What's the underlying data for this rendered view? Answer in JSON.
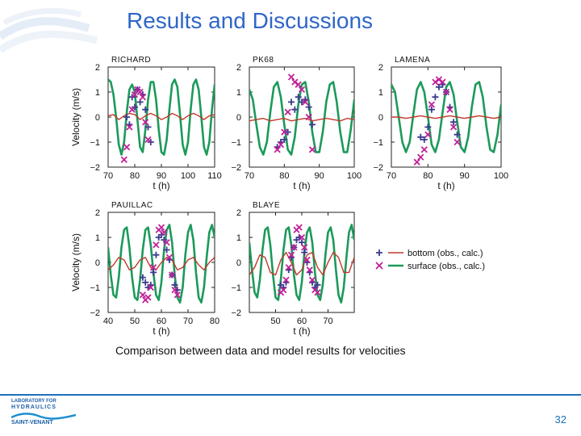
{
  "slide": {
    "title": "Results and Discussions",
    "caption": "Comparison between data and model results for  velocities",
    "page_number": "32"
  },
  "logo": {
    "line1": "LABORATORY FOR",
    "line2": "HYDRAULICS",
    "line3": "SAINT-VENANT"
  },
  "colors": {
    "title": "#2f66c7",
    "surface_calc": "#1b9a5a",
    "bottom_calc": "#c0392b",
    "bottom_obs": "#3b3b8f",
    "surface_obs": "#c0219a",
    "accent": "#1d6fb8"
  },
  "chart_data": [
    {
      "type": "scatter",
      "panel": "RICHARD",
      "title": "RICHARD",
      "xlabel": "t (h)",
      "ylabel": "Velocity (m/s)",
      "xlim": [
        70,
        110
      ],
      "ylim": [
        -2,
        2
      ],
      "xticks": [
        70,
        80,
        90,
        100,
        110
      ],
      "yticks": [
        2,
        1,
        0,
        -1,
        -2
      ],
      "series": [
        {
          "kind": "line",
          "role": "surface",
          "x": [
            70,
            71,
            72,
            73,
            74,
            75,
            76,
            77,
            78,
            79,
            80,
            81,
            82,
            83,
            84,
            85,
            86,
            87,
            88,
            89,
            90,
            91,
            92,
            93,
            94,
            95,
            96,
            97,
            98,
            99,
            100,
            101,
            102,
            103,
            104,
            105,
            106,
            107,
            108,
            109,
            110
          ],
          "y": [
            1.5,
            1.4,
            0.9,
            0.0,
            -1.1,
            -1.5,
            -1.0,
            0.2,
            1.1,
            1.3,
            1.0,
            -0.1,
            -1.2,
            -1.4,
            -0.5,
            0.7,
            1.4,
            1.4,
            0.7,
            -0.5,
            -1.4,
            -1.5,
            -0.9,
            0.3,
            1.3,
            1.5,
            1.2,
            0.1,
            -1.1,
            -1.5,
            -1.0,
            0.3,
            1.3,
            1.5,
            1.1,
            0.0,
            -1.2,
            -1.5,
            -1.0,
            0.3,
            1.3
          ]
        },
        {
          "kind": "line",
          "role": "bottom",
          "x": [
            70,
            72,
            74,
            76,
            78,
            80,
            82,
            84,
            86,
            88,
            90,
            92,
            94,
            96,
            98,
            100,
            102,
            104,
            106,
            108,
            110
          ],
          "y": [
            0.05,
            0.1,
            -0.1,
            0.05,
            0.15,
            0.1,
            -0.1,
            0.05,
            0.15,
            0.05,
            -0.1,
            0.0,
            0.15,
            0.05,
            -0.1,
            0.05,
            0.15,
            0.05,
            -0.1,
            0.05,
            0.1
          ]
        },
        {
          "kind": "points",
          "role": "bottom",
          "x": [
            77,
            78,
            79,
            80,
            81,
            82,
            83,
            84,
            85,
            86
          ],
          "y": [
            0.0,
            -0.3,
            0.8,
            0.4,
            1.1,
            0.6,
            0.9,
            0.3,
            -0.4,
            -1.0
          ]
        },
        {
          "kind": "points",
          "role": "surface",
          "x": [
            76,
            77,
            78,
            79,
            80,
            81,
            82,
            83,
            84,
            85
          ],
          "y": [
            -1.7,
            -1.2,
            -0.4,
            0.3,
            0.9,
            1.1,
            1.0,
            0.8,
            -0.2,
            -0.9
          ]
        }
      ]
    },
    {
      "type": "scatter",
      "panel": "PK68",
      "title": "PK68",
      "xlabel": "t (h)",
      "ylabel": "",
      "xlim": [
        70,
        100
      ],
      "ylim": [
        -2,
        2
      ],
      "xticks": [
        70,
        80,
        90,
        100
      ],
      "yticks": [
        2,
        1,
        0,
        -1,
        -2
      ],
      "series": [
        {
          "kind": "line",
          "role": "surface",
          "x": [
            70,
            71,
            72,
            73,
            74,
            75,
            76,
            77,
            78,
            79,
            80,
            81,
            82,
            83,
            84,
            85,
            86,
            87,
            88,
            89,
            90,
            91,
            92,
            93,
            94,
            95,
            96,
            97,
            98,
            99,
            100
          ],
          "y": [
            1.1,
            0.7,
            -0.3,
            -1.2,
            -1.5,
            -1.0,
            0.2,
            1.2,
            1.4,
            0.8,
            -0.3,
            -1.3,
            -1.5,
            -0.8,
            0.5,
            1.3,
            1.4,
            0.6,
            -0.6,
            -1.4,
            -1.4,
            -0.6,
            0.6,
            1.3,
            1.4,
            0.6,
            -0.6,
            -1.4,
            -1.4,
            -0.5,
            0.7
          ]
        },
        {
          "kind": "line",
          "role": "bottom",
          "x": [
            70,
            72,
            74,
            76,
            78,
            80,
            82,
            84,
            86,
            88,
            90,
            92,
            94,
            96,
            98,
            100
          ],
          "y": [
            -0.15,
            -0.1,
            -0.05,
            -0.15,
            -0.1,
            -0.05,
            -0.15,
            -0.1,
            -0.05,
            -0.15,
            -0.1,
            -0.05,
            -0.1,
            -0.15,
            -0.05,
            -0.1
          ]
        },
        {
          "kind": "points",
          "role": "bottom",
          "x": [
            78,
            79,
            80,
            81,
            82,
            83,
            84,
            85,
            86,
            87,
            88
          ],
          "y": [
            -1.2,
            -1.0,
            -0.9,
            -0.6,
            0.6,
            0.3,
            0.8,
            0.6,
            0.7,
            0.4,
            -0.3
          ]
        },
        {
          "kind": "points",
          "role": "surface",
          "x": [
            78,
            79,
            80,
            81,
            82,
            83,
            84,
            85,
            86,
            87,
            88
          ],
          "y": [
            -1.3,
            -1.1,
            -0.6,
            0.2,
            1.6,
            1.4,
            1.3,
            1.1,
            0.6,
            0.0,
            -1.3
          ]
        }
      ]
    },
    {
      "type": "scatter",
      "panel": "LAMENA",
      "title": "LAMENA",
      "xlabel": "t (h)",
      "ylabel": "",
      "xlim": [
        70,
        100
      ],
      "ylim": [
        -2,
        2
      ],
      "xticks": [
        70,
        80,
        90,
        100
      ],
      "yticks": [
        2,
        1,
        0,
        -1,
        -2
      ],
      "series": [
        {
          "kind": "line",
          "role": "surface",
          "x": [
            70,
            71,
            72,
            73,
            74,
            75,
            76,
            77,
            78,
            79,
            80,
            81,
            82,
            83,
            84,
            85,
            86,
            87,
            88,
            89,
            90,
            91,
            92,
            93,
            94,
            95,
            96,
            97,
            98,
            99,
            100
          ],
          "y": [
            1.3,
            1.0,
            0.0,
            -1.0,
            -1.4,
            -1.0,
            0.1,
            1.1,
            1.4,
            1.0,
            0.0,
            -1.1,
            -1.4,
            -0.9,
            0.2,
            1.2,
            1.4,
            0.9,
            -0.2,
            -1.2,
            -1.4,
            -0.8,
            0.4,
            1.3,
            1.4,
            0.8,
            -0.4,
            -1.3,
            -1.4,
            -0.7,
            0.5
          ]
        },
        {
          "kind": "line",
          "role": "bottom",
          "x": [
            70,
            72,
            74,
            76,
            78,
            80,
            82,
            84,
            86,
            88,
            90,
            92,
            94,
            96,
            98,
            100
          ],
          "y": [
            0.0,
            0.0,
            -0.05,
            0.0,
            0.05,
            0.0,
            -0.05,
            0.0,
            0.05,
            0.0,
            -0.05,
            0.0,
            0.05,
            0.0,
            -0.05,
            0.0
          ]
        },
        {
          "kind": "points",
          "role": "bottom",
          "x": [
            78,
            79,
            80,
            81,
            82,
            83,
            84,
            85,
            86,
            87,
            88
          ],
          "y": [
            -0.8,
            -0.9,
            -0.4,
            0.3,
            0.8,
            1.2,
            1.3,
            1.0,
            0.4,
            -0.2,
            -0.7
          ]
        },
        {
          "kind": "points",
          "role": "surface",
          "x": [
            77,
            78,
            79,
            80,
            81,
            82,
            83,
            84,
            85,
            86,
            87,
            88
          ],
          "y": [
            -1.8,
            -1.6,
            -1.3,
            -0.7,
            0.5,
            1.4,
            1.5,
            1.4,
            1.0,
            0.3,
            -0.4,
            -1.0
          ]
        }
      ]
    },
    {
      "type": "scatter",
      "panel": "PAUILLAC",
      "title": "PAUILLAC",
      "xlabel": "t (h)",
      "ylabel": "Velocity (m/s)",
      "xlim": [
        40,
        80
      ],
      "ylim": [
        -2,
        2
      ],
      "xticks": [
        40,
        50,
        60,
        70,
        80
      ],
      "yticks": [
        2,
        1,
        0,
        -1,
        -2
      ],
      "series": [
        {
          "kind": "line",
          "role": "surface",
          "x": [
            40,
            41,
            42,
            43,
            44,
            45,
            46,
            47,
            48,
            49,
            50,
            51,
            52,
            53,
            54,
            55,
            56,
            57,
            58,
            59,
            60,
            61,
            62,
            63,
            64,
            65,
            66,
            67,
            68,
            69,
            70,
            71,
            72,
            73,
            74,
            75,
            76,
            77,
            78,
            79,
            80
          ],
          "y": [
            0.6,
            -0.5,
            -1.3,
            -1.4,
            -0.6,
            0.6,
            1.3,
            1.4,
            0.6,
            -0.6,
            -1.4,
            -1.5,
            -0.7,
            0.5,
            1.3,
            1.4,
            0.7,
            -0.4,
            -1.3,
            -1.5,
            -0.8,
            0.5,
            1.3,
            1.5,
            0.8,
            -0.5,
            -1.4,
            -1.6,
            -1.0,
            0.3,
            1.2,
            1.5,
            0.9,
            -0.4,
            -1.4,
            -1.6,
            -1.0,
            0.2,
            1.2,
            1.5,
            1.0
          ]
        },
        {
          "kind": "line",
          "role": "bottom",
          "x": [
            40,
            42,
            44,
            46,
            48,
            50,
            52,
            54,
            56,
            58,
            60,
            62,
            64,
            66,
            68,
            70,
            72,
            74,
            76,
            78,
            80
          ],
          "y": [
            -0.3,
            -0.1,
            0.2,
            0.1,
            -0.3,
            -0.2,
            0.1,
            0.2,
            -0.2,
            -0.3,
            0.0,
            0.2,
            0.1,
            -0.3,
            -0.2,
            0.1,
            0.2,
            -0.1,
            -0.3,
            0.0,
            0.2
          ]
        },
        {
          "kind": "points",
          "role": "bottom",
          "x": [
            53,
            54,
            55,
            56,
            57,
            58,
            59,
            60,
            61,
            62,
            63,
            64,
            65,
            66
          ],
          "y": [
            -0.6,
            -0.8,
            -1.0,
            -0.9,
            -0.4,
            0.3,
            1.0,
            1.1,
            0.9,
            0.5,
            0.1,
            -0.5,
            -0.9,
            -1.1
          ]
        },
        {
          "kind": "points",
          "role": "surface",
          "x": [
            53,
            54,
            55,
            56,
            57,
            58,
            59,
            60,
            61,
            62,
            63,
            64,
            65,
            66
          ],
          "y": [
            -1.3,
            -1.5,
            -1.4,
            -1.0,
            -0.2,
            0.7,
            1.3,
            1.4,
            1.2,
            0.8,
            0.2,
            -0.5,
            -1.1,
            -1.3
          ]
        }
      ]
    },
    {
      "type": "scatter",
      "panel": "BLAYE",
      "title": "BLAYE",
      "xlabel": "t (h)",
      "ylabel": "",
      "xlim": [
        40,
        80
      ],
      "ylim": [
        -2,
        2
      ],
      "xticks": [
        50,
        60,
        70
      ],
      "yticks": [
        2,
        1,
        0,
        -1,
        -2
      ],
      "series": [
        {
          "kind": "line",
          "role": "surface",
          "x": [
            40,
            41,
            42,
            43,
            44,
            45,
            46,
            47,
            48,
            49,
            50,
            51,
            52,
            53,
            54,
            55,
            56,
            57,
            58,
            59,
            60,
            61,
            62,
            63,
            64,
            65,
            66,
            67,
            68,
            69,
            70,
            71,
            72,
            73,
            74,
            75,
            76,
            77,
            78,
            79,
            80
          ],
          "y": [
            0.8,
            -0.3,
            -1.2,
            -1.4,
            -0.7,
            0.5,
            1.3,
            1.4,
            0.7,
            -0.5,
            -1.4,
            -1.5,
            -0.7,
            0.5,
            1.3,
            1.4,
            0.7,
            -0.5,
            -1.3,
            -1.5,
            -0.8,
            0.4,
            1.2,
            1.4,
            0.8,
            -0.4,
            -1.3,
            -1.5,
            -0.9,
            0.3,
            1.2,
            1.4,
            0.9,
            -0.3,
            -1.3,
            -1.6,
            -1.0,
            0.2,
            1.2,
            1.5,
            0.9
          ]
        },
        {
          "kind": "line",
          "role": "bottom",
          "x": [
            40,
            42,
            44,
            46,
            48,
            50,
            52,
            54,
            56,
            58,
            60,
            62,
            64,
            66,
            68,
            70,
            72,
            74,
            76,
            78,
            80
          ],
          "y": [
            -0.5,
            -0.2,
            0.3,
            0.2,
            -0.4,
            -0.5,
            0.1,
            0.4,
            0.0,
            -0.5,
            -0.3,
            0.3,
            0.4,
            -0.2,
            -0.5,
            0.0,
            0.4,
            0.2,
            -0.4,
            -0.4,
            0.2
          ]
        },
        {
          "kind": "points",
          "role": "bottom",
          "x": [
            52,
            53,
            54,
            55,
            56,
            57,
            58,
            59,
            60,
            61,
            62,
            63,
            64,
            65,
            66
          ],
          "y": [
            -0.9,
            -1.0,
            -0.8,
            -0.3,
            0.2,
            0.6,
            0.9,
            1.0,
            0.8,
            0.4,
            0.0,
            -0.4,
            -0.8,
            -1.0,
            -0.9
          ]
        },
        {
          "kind": "points",
          "role": "surface",
          "x": [
            52,
            53,
            54,
            55,
            56,
            57,
            58,
            59,
            60,
            61,
            62,
            63,
            64,
            65,
            66
          ],
          "y": [
            -1.2,
            -1.1,
            -0.7,
            -0.2,
            0.3,
            0.6,
            1.3,
            1.4,
            1.0,
            0.6,
            0.1,
            -0.3,
            -0.7,
            -1.1,
            -1.2
          ]
        }
      ]
    }
  ],
  "legend": {
    "placement": "right",
    "items": [
      {
        "role": "bottom",
        "label": "bottom (obs., calc.)"
      },
      {
        "role": "surface",
        "label": "surface (obs., calc.)"
      }
    ]
  }
}
